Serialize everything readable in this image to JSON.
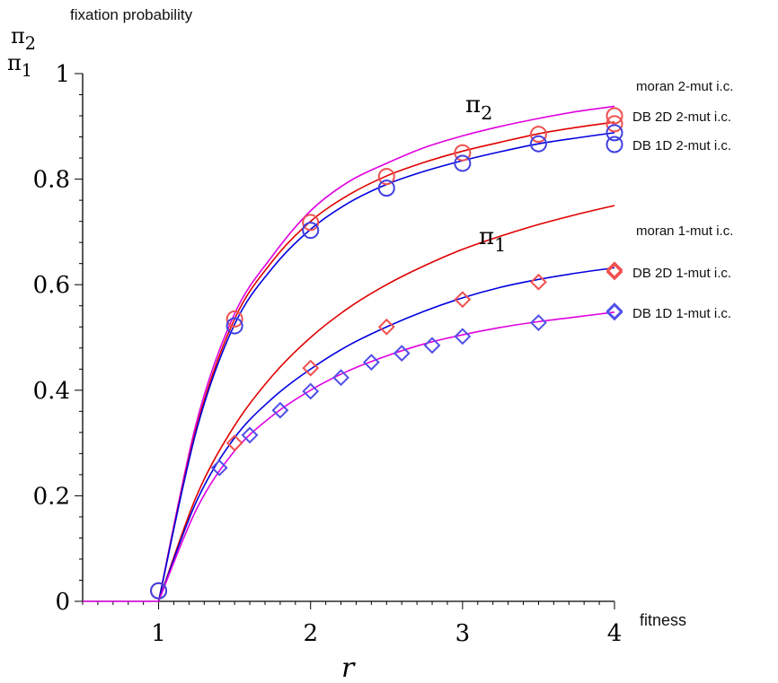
{
  "chart_data": {
    "type": "line",
    "ylabel": "fixation probability",
    "ylabel_symbols": [
      "π2",
      "π1"
    ],
    "xlabel_right": "fitness",
    "xlabel_symbol": "r",
    "xlim": [
      0.5,
      4
    ],
    "ylim": [
      0,
      1
    ],
    "x_ticks": [
      "1",
      "2",
      "3",
      "4"
    ],
    "y_ticks": [
      "0",
      "0.2",
      "0.4",
      "0.6",
      "0.8",
      "1"
    ],
    "curve_annotations": [
      "π2",
      "π1"
    ],
    "legend_placement": "right",
    "series": [
      {
        "name": "moran 2-mut i.c.",
        "kind": "line",
        "color": "#e000e0",
        "x": [
          1,
          1.25,
          1.5,
          1.75,
          2,
          2.25,
          2.5,
          2.75,
          3,
          3.25,
          3.5,
          3.75,
          4
        ],
        "y": [
          0.0,
          0.34,
          0.545,
          0.655,
          0.74,
          0.795,
          0.83,
          0.86,
          0.882,
          0.9,
          0.915,
          0.928,
          0.938
        ]
      },
      {
        "name": "DB 2D 2-mut i.c.",
        "kind": "line",
        "color": "#e00000",
        "x": [
          1,
          1.25,
          1.5,
          1.75,
          2,
          2.25,
          2.5,
          2.75,
          3,
          3.25,
          3.5,
          3.75,
          4
        ],
        "y": [
          0.0,
          0.33,
          0.535,
          0.645,
          0.72,
          0.77,
          0.806,
          0.832,
          0.853,
          0.87,
          0.886,
          0.898,
          0.908
        ]
      },
      {
        "name": "DB 1D 2-mut i.c.",
        "kind": "line",
        "color": "#0000e0",
        "x": [
          1,
          1.25,
          1.5,
          1.75,
          2,
          2.25,
          2.5,
          2.75,
          3,
          3.25,
          3.5,
          3.75,
          4
        ],
        "y": [
          0.0,
          0.325,
          0.525,
          0.632,
          0.705,
          0.755,
          0.79,
          0.815,
          0.835,
          0.852,
          0.867,
          0.878,
          0.888
        ]
      },
      {
        "name": "moran 1-mut i.c.",
        "kind": "line",
        "color": "#e00000",
        "x": [
          1,
          1.25,
          1.5,
          1.75,
          2,
          2.25,
          2.5,
          2.75,
          3,
          3.25,
          3.5,
          3.75,
          4
        ],
        "y": [
          0.0,
          0.2,
          0.333,
          0.428,
          0.5,
          0.556,
          0.6,
          0.636,
          0.667,
          0.692,
          0.714,
          0.733,
          0.75
        ]
      },
      {
        "name": "DB 2D 1-mut i.c.",
        "kind": "line",
        "color": "#0000e0",
        "x": [
          1,
          1.25,
          1.5,
          1.75,
          2,
          2.25,
          2.5,
          2.75,
          3,
          3.25,
          3.5,
          3.75,
          4
        ],
        "y": [
          0.0,
          0.19,
          0.31,
          0.385,
          0.44,
          0.485,
          0.52,
          0.55,
          0.575,
          0.595,
          0.61,
          0.622,
          0.632
        ]
      },
      {
        "name": "DB 1D 1-mut i.c.",
        "kind": "line",
        "color": "#e000e0",
        "x": [
          1,
          1.25,
          1.5,
          1.75,
          2,
          2.25,
          2.5,
          2.75,
          3,
          3.25,
          3.5,
          3.75,
          4
        ],
        "y": [
          0.0,
          0.175,
          0.285,
          0.352,
          0.4,
          0.437,
          0.465,
          0.488,
          0.505,
          0.519,
          0.53,
          0.539,
          0.548
        ]
      }
    ],
    "markers": [
      {
        "marker": "circle",
        "color": "#f05050",
        "x": [
          1,
          1.5,
          2,
          2.5,
          3,
          3.5,
          4
        ],
        "y": [
          0.02,
          0.535,
          0.718,
          0.805,
          0.85,
          0.885,
          0.905
        ]
      },
      {
        "marker": "circle",
        "color": "#4040e0",
        "x": [
          1,
          1.5,
          2,
          2.5,
          3,
          3.5,
          4
        ],
        "y": [
          0.02,
          0.522,
          0.703,
          0.783,
          0.83,
          0.867,
          0.888
        ]
      },
      {
        "marker": "diamond",
        "color": "#f05050",
        "x": [
          1.5,
          2,
          2.5,
          3,
          3.5,
          4
        ],
        "y": [
          0.3,
          0.442,
          0.52,
          0.572,
          0.605,
          0.628
        ]
      },
      {
        "marker": "diamond",
        "color": "#5050e8",
        "x": [
          1.4,
          1.6,
          1.8,
          2,
          2.2,
          2.4,
          2.6,
          2.8,
          3,
          3.5,
          4
        ],
        "y": [
          0.253,
          0.315,
          0.362,
          0.398,
          0.424,
          0.453,
          0.47,
          0.485,
          0.502,
          0.528,
          0.55
        ]
      }
    ],
    "legend": [
      {
        "label": "moran 2-mut i.c.",
        "marker": "none",
        "color": ""
      },
      {
        "label": "DB 2D 2-mut i.c.",
        "marker": "circle",
        "color": "#f05050"
      },
      {
        "label": "DB 1D 2-mut i.c.",
        "marker": "circle",
        "color": "#4040e0"
      },
      {
        "label": "moran 1-mut i.c.",
        "marker": "none",
        "color": ""
      },
      {
        "label": "DB 2D 1-mut i.c.",
        "marker": "diamond",
        "color": "#f05050"
      },
      {
        "label": "DB 1D 1-mut i.c.",
        "marker": "diamond",
        "color": "#5050e8"
      }
    ]
  }
}
